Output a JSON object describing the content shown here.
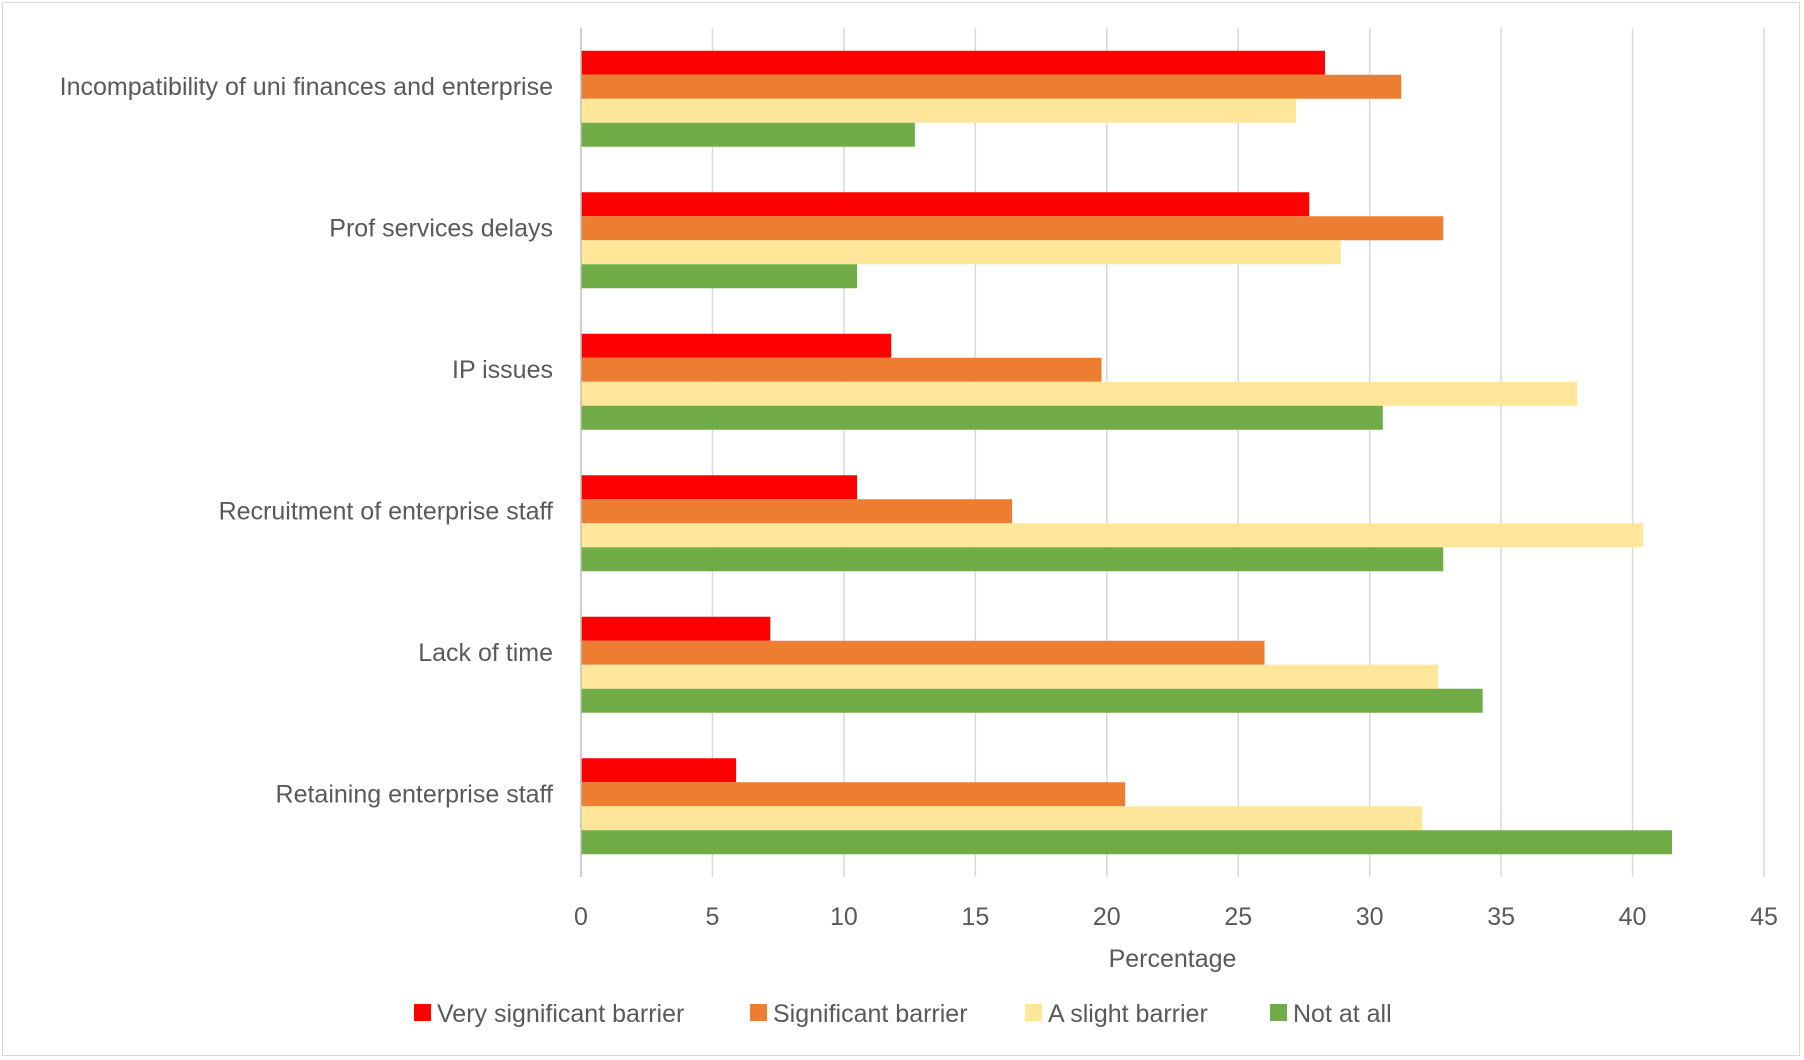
{
  "chart_data": {
    "type": "bar",
    "orientation": "horizontal",
    "title": "",
    "xlabel": "Percentage",
    "ylabel": "",
    "xlim": [
      0,
      45
    ],
    "x_ticks": [
      0,
      5,
      10,
      15,
      20,
      25,
      30,
      35,
      40,
      45
    ],
    "grid": true,
    "legend_position": "bottom",
    "categories": [
      "Incompatibility of uni finances and enterprise",
      "Prof services delays",
      "IP issues",
      "Recruitment of enterprise staff",
      "Lack of time",
      "Retaining enterprise staff"
    ],
    "series": [
      {
        "name": "Very significant barrier",
        "color": "#ff0000",
        "values": [
          28.3,
          27.7,
          11.8,
          10.5,
          7.2,
          5.9
        ]
      },
      {
        "name": "Significant barrier",
        "color": "#ed7d31",
        "values": [
          31.2,
          32.8,
          19.8,
          16.4,
          26.0,
          20.7
        ]
      },
      {
        "name": "A slight barrier",
        "color": "#ffe699",
        "values": [
          27.2,
          28.9,
          37.9,
          40.4,
          32.6,
          32.0
        ]
      },
      {
        "name": "Not at all",
        "color": "#70ad47",
        "values": [
          12.7,
          10.5,
          30.5,
          32.8,
          34.3,
          41.5
        ]
      }
    ]
  }
}
